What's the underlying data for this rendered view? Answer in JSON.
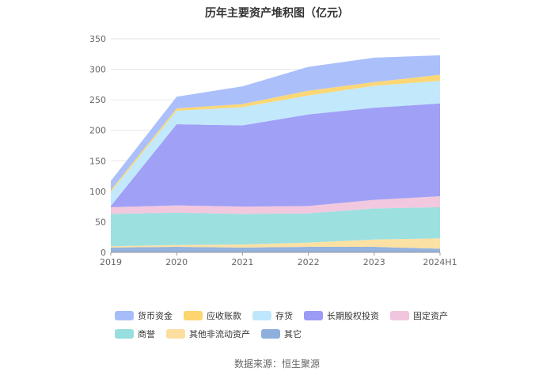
{
  "chart_data": {
    "type": "area",
    "stacked": true,
    "title": "历年主要资产堆积图（亿元）",
    "x": [
      "2019",
      "2020",
      "2021",
      "2022",
      "2023",
      "2024H1"
    ],
    "ylim": [
      0,
      350
    ],
    "yticks": [
      0,
      50,
      100,
      150,
      200,
      250,
      300,
      350
    ],
    "grid": true,
    "legend_position": "bottom",
    "series": [
      {
        "name": "其它",
        "color": "#8eafdc",
        "values": [
          8,
          9,
          8,
          9,
          9,
          6
        ]
      },
      {
        "name": "其他非流动资产",
        "color": "#fcdfa0",
        "values": [
          2,
          3,
          5,
          7,
          12,
          17
        ]
      },
      {
        "name": "商誉",
        "color": "#98dede",
        "values": [
          53,
          53,
          50,
          48,
          51,
          51
        ]
      },
      {
        "name": "固定资产",
        "color": "#f1c5dd",
        "values": [
          11,
          12,
          12,
          12,
          14,
          18
        ]
      },
      {
        "name": "长期股权投资",
        "color": "#9b9bf5",
        "values": [
          2,
          133,
          133,
          150,
          151,
          152
        ]
      },
      {
        "name": "存货",
        "color": "#bfe7fc",
        "values": [
          23,
          22,
          30,
          31,
          36,
          37
        ]
      },
      {
        "name": "应收账款",
        "color": "#fcd56e",
        "values": [
          3,
          4,
          5,
          8,
          6,
          10
        ]
      },
      {
        "name": "货币资金",
        "color": "#a7bdfa",
        "values": [
          15,
          19,
          29,
          39,
          40,
          32
        ]
      }
    ],
    "legend": [
      "货币资金",
      "应收账款",
      "存货",
      "长期股权投资",
      "固定资产",
      "商誉",
      "其他非流动资产",
      "其它"
    ],
    "source": "数据来源：恒生聚源"
  }
}
